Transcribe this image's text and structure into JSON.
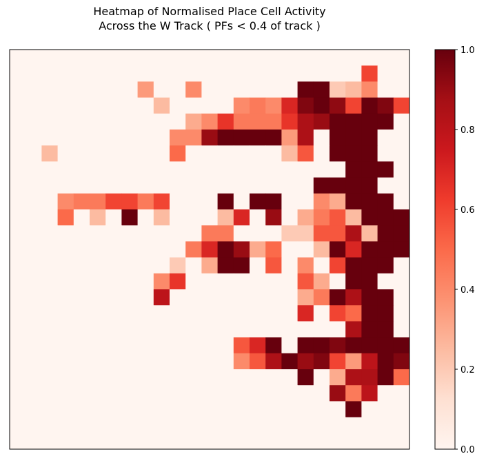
{
  "chart_data": {
    "type": "heatmap",
    "title_lines": [
      "Heatmap of Normalised Place Cell Activity",
      "Across the W Track ( PFs < 0.4 of track )"
    ],
    "xlabel": "",
    "ylabel": "",
    "n_rows": 25,
    "n_cols": 25,
    "colormap": "Reds",
    "vmin": 0.0,
    "vmax": 1.0,
    "colorbar_ticks": [
      0.0,
      0.2,
      0.4,
      0.6,
      0.8,
      1.0
    ],
    "colorbar_tick_labels": [
      "0.0",
      "0.2",
      "0.4",
      "0.6",
      "0.8",
      "1.0"
    ],
    "values": [
      [
        0,
        0,
        0,
        0,
        0,
        0,
        0,
        0,
        0,
        0,
        0,
        0,
        0,
        0,
        0,
        0,
        0,
        0,
        0,
        0,
        0,
        0,
        0,
        0,
        0
      ],
      [
        0,
        0,
        0,
        0,
        0,
        0,
        0,
        0,
        0,
        0,
        0,
        0,
        0,
        0,
        0,
        0,
        0,
        0,
        0,
        0,
        0,
        0,
        0.6,
        0,
        0
      ],
      [
        0,
        0,
        0,
        0,
        0,
        0,
        0,
        0,
        0.35,
        0,
        0,
        0.4,
        0,
        0,
        0,
        0,
        0,
        0,
        1,
        1,
        0.2,
        0.25,
        0.4,
        0,
        0
      ],
      [
        0,
        0,
        0,
        0,
        0,
        0,
        0,
        0,
        0,
        0.25,
        0,
        0,
        0,
        0,
        0.4,
        0.45,
        0.4,
        0.7,
        0.95,
        1,
        0.92,
        0.6,
        1,
        0.95,
        0.6
      ],
      [
        0,
        0,
        0,
        0,
        0,
        0,
        0,
        0,
        0,
        0,
        0,
        0.3,
        0.4,
        0.65,
        0.45,
        0.45,
        0.45,
        0.65,
        0.85,
        0.9,
        1,
        1,
        1,
        1,
        0
      ],
      [
        0,
        0,
        0,
        0,
        0,
        0,
        0,
        0,
        0,
        0,
        0.4,
        0.4,
        0.9,
        1,
        1,
        1,
        1,
        0.35,
        0.85,
        0,
        1,
        1,
        1,
        0,
        0
      ],
      [
        0,
        0,
        0.25,
        0,
        0,
        0,
        0,
        0,
        0,
        0,
        0.5,
        0,
        0,
        0,
        0,
        0,
        0,
        0.25,
        0.55,
        0,
        1,
        1,
        1,
        0,
        0
      ],
      [
        0,
        0,
        0,
        0,
        0,
        0,
        0,
        0,
        0,
        0,
        0,
        0,
        0,
        0,
        0,
        0,
        0,
        0,
        0,
        0,
        0,
        1,
        1,
        1,
        0
      ],
      [
        0,
        0,
        0,
        0,
        0,
        0,
        0,
        0,
        0,
        0,
        0,
        0,
        0,
        0,
        0,
        0,
        0,
        0,
        0,
        1,
        1,
        1,
        1,
        0,
        0
      ],
      [
        0,
        0,
        0,
        0.4,
        0.45,
        0.45,
        0.6,
        0.6,
        0.45,
        0.6,
        0,
        0,
        0,
        1,
        0,
        1,
        1,
        0,
        0,
        0.4,
        0.3,
        1,
        1,
        1,
        0
      ],
      [
        0,
        0,
        0,
        0.5,
        0,
        0.25,
        0,
        1,
        0,
        0.25,
        0,
        0,
        0,
        0.25,
        0.7,
        0,
        0.9,
        0,
        0.3,
        0.45,
        0.55,
        0.25,
        1,
        1,
        1
      ],
      [
        0,
        0,
        0,
        0,
        0,
        0,
        0,
        0,
        0,
        0,
        0,
        0,
        0.45,
        0.45,
        0,
        0,
        0,
        0.2,
        0.2,
        0.55,
        0.55,
        0.85,
        0.25,
        1,
        1
      ],
      [
        0,
        0,
        0,
        0,
        0,
        0,
        0,
        0,
        0,
        0,
        0,
        0.45,
        0.7,
        1,
        0.9,
        0.3,
        0.5,
        0,
        0,
        0.25,
        1,
        0.7,
        1,
        1,
        1
      ],
      [
        0,
        0,
        0,
        0,
        0,
        0,
        0,
        0,
        0,
        0,
        0.2,
        0,
        0.3,
        1,
        1,
        0,
        0.55,
        0,
        0.4,
        0,
        0.6,
        1,
        1,
        1,
        0
      ],
      [
        0,
        0,
        0,
        0,
        0,
        0,
        0,
        0,
        0,
        0.4,
        0.65,
        0,
        0,
        0,
        0,
        0,
        0,
        0,
        0.55,
        0.3,
        0,
        1,
        1,
        0,
        0
      ],
      [
        0,
        0,
        0,
        0,
        0,
        0,
        0,
        0,
        0,
        0.8,
        0,
        0,
        0,
        0,
        0,
        0,
        0,
        0,
        0.3,
        0.45,
        1,
        0.85,
        1,
        1,
        0
      ],
      [
        0,
        0,
        0,
        0,
        0,
        0,
        0,
        0,
        0,
        0,
        0,
        0,
        0,
        0,
        0,
        0,
        0,
        0,
        0.7,
        0,
        0.6,
        0.5,
        1,
        1,
        0
      ],
      [
        0,
        0,
        0,
        0,
        0,
        0,
        0,
        0,
        0,
        0,
        0,
        0,
        0,
        0,
        0,
        0,
        0,
        0,
        0,
        0,
        0,
        0.85,
        1,
        1,
        0
      ],
      [
        0,
        0,
        0,
        0,
        0,
        0,
        0,
        0,
        0,
        0,
        0,
        0,
        0,
        0,
        0.55,
        0.7,
        1,
        0,
        1,
        1,
        0.95,
        1,
        1,
        1,
        1
      ],
      [
        0,
        0,
        0,
        0,
        0,
        0,
        0,
        0,
        0,
        0,
        0,
        0,
        0,
        0,
        0.4,
        0.55,
        0.85,
        1,
        0.9,
        0.95,
        0.6,
        0.35,
        0.8,
        1,
        0.95
      ],
      [
        0,
        0,
        0,
        0,
        0,
        0,
        0,
        0,
        0,
        0,
        0,
        0,
        0,
        0,
        0,
        0,
        0,
        0,
        1,
        0,
        0.3,
        0.85,
        0.85,
        1,
        0.5
      ],
      [
        0,
        0,
        0,
        0,
        0,
        0,
        0,
        0,
        0,
        0,
        0,
        0,
        0,
        0,
        0,
        0,
        0,
        0,
        0,
        0,
        0.9,
        0.45,
        0.8,
        0,
        0
      ],
      [
        0,
        0,
        0,
        0,
        0,
        0,
        0,
        0,
        0,
        0,
        0,
        0,
        0,
        0,
        0,
        0,
        0,
        0,
        0,
        0,
        0,
        1,
        0,
        0,
        0
      ],
      [
        0,
        0,
        0,
        0,
        0,
        0,
        0,
        0,
        0,
        0,
        0,
        0,
        0,
        0,
        0,
        0,
        0,
        0,
        0,
        0,
        0,
        0,
        0,
        0,
        0
      ],
      [
        0,
        0,
        0,
        0,
        0,
        0,
        0,
        0,
        0,
        0,
        0,
        0,
        0,
        0,
        0,
        0,
        0,
        0,
        0,
        0,
        0,
        0,
        0,
        0,
        0
      ]
    ]
  }
}
